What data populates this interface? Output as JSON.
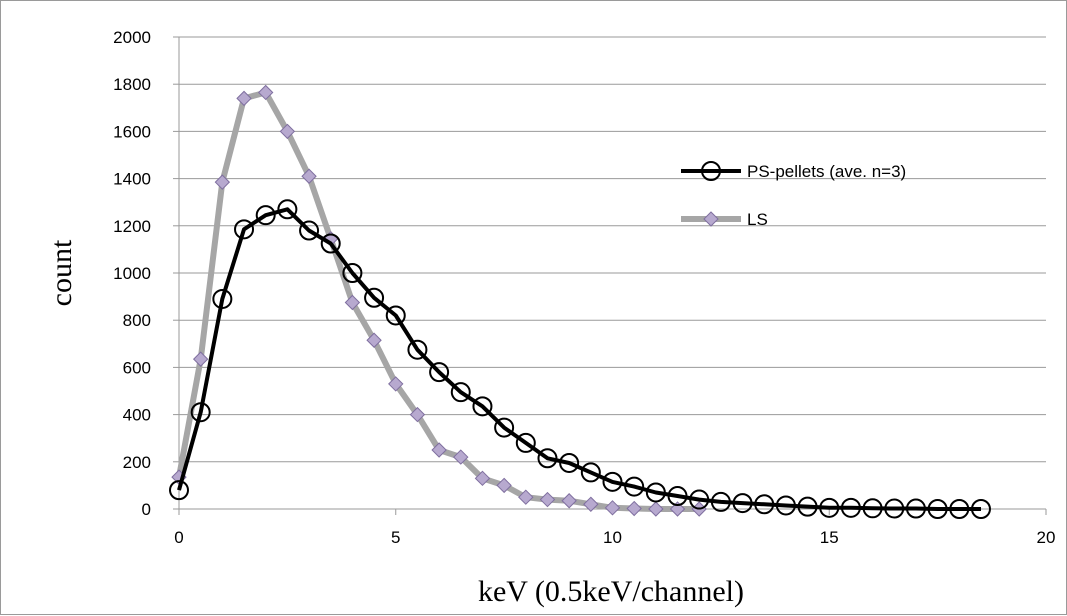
{
  "chart_data": {
    "type": "line",
    "xlabel": "keV (0.5keV/channel)",
    "ylabel": "count",
    "xlim": [
      0,
      20
    ],
    "ylim": [
      0,
      2000
    ],
    "x_ticks": [
      "0",
      "5",
      "10",
      "15",
      "20"
    ],
    "y_ticks": [
      "0",
      "200",
      "400",
      "600",
      "800",
      "1000",
      "1200",
      "1400",
      "1600",
      "1800",
      "2000"
    ],
    "grid": "horizontal",
    "legend_position": "right",
    "series": [
      {
        "name": "PS-pellets (ave. n=3)",
        "color": "#000000",
        "marker": "circle",
        "points": [
          [
            0,
            80
          ],
          [
            0.5,
            410
          ],
          [
            1,
            890
          ],
          [
            1.5,
            1185
          ],
          [
            2,
            1245
          ],
          [
            2.5,
            1270
          ],
          [
            3,
            1180
          ],
          [
            3.5,
            1125
          ],
          [
            4,
            1000
          ],
          [
            4.5,
            895
          ],
          [
            5,
            820
          ],
          [
            5.5,
            675
          ],
          [
            6,
            580
          ],
          [
            6.5,
            495
          ],
          [
            7,
            435
          ],
          [
            7.5,
            345
          ],
          [
            8,
            280
          ],
          [
            8.5,
            215
          ],
          [
            9,
            195
          ],
          [
            9.5,
            155
          ],
          [
            10,
            115
          ],
          [
            10.5,
            95
          ],
          [
            11,
            70
          ],
          [
            11.5,
            55
          ],
          [
            12,
            40
          ],
          [
            12.5,
            30
          ],
          [
            13,
            25
          ],
          [
            13.5,
            20
          ],
          [
            14,
            15
          ],
          [
            14.5,
            10
          ],
          [
            15,
            5
          ],
          [
            15.5,
            5
          ],
          [
            16,
            3
          ],
          [
            16.5,
            2
          ],
          [
            17,
            2
          ],
          [
            17.5,
            0
          ],
          [
            18,
            0
          ],
          [
            18.5,
            0
          ]
        ]
      },
      {
        "name": "LS",
        "color": "#a6a6a6",
        "marker": "diamond",
        "points": [
          [
            0,
            135
          ],
          [
            0.5,
            635
          ],
          [
            1,
            1385
          ],
          [
            1.5,
            1740
          ],
          [
            2,
            1765
          ],
          [
            2.5,
            1600
          ],
          [
            3,
            1410
          ],
          [
            3.5,
            1145
          ],
          [
            4,
            875
          ],
          [
            4.5,
            715
          ],
          [
            5,
            530
          ],
          [
            5.5,
            400
          ],
          [
            6,
            250
          ],
          [
            6.5,
            220
          ],
          [
            7,
            130
          ],
          [
            7.5,
            100
          ],
          [
            8,
            50
          ],
          [
            8.5,
            40
          ],
          [
            9,
            35
          ],
          [
            9.5,
            20
          ],
          [
            10,
            5
          ],
          [
            10.5,
            2
          ],
          [
            11,
            0
          ],
          [
            11.5,
            0
          ],
          [
            12,
            0
          ]
        ]
      }
    ]
  }
}
